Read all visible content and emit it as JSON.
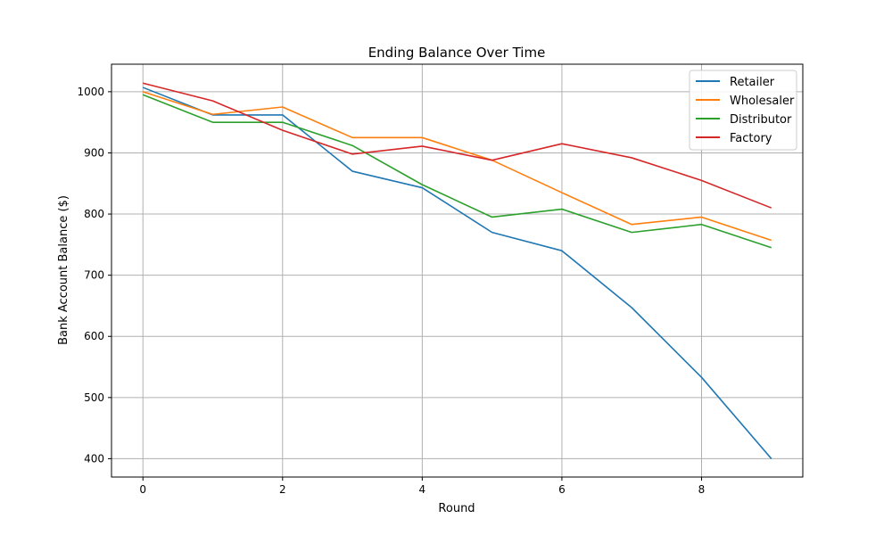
{
  "chart_data": {
    "type": "line",
    "title": "Ending Balance Over Time",
    "xlabel": "Round",
    "ylabel": "Bank Account Balance ($)",
    "x": [
      0,
      1,
      2,
      3,
      4,
      5,
      6,
      7,
      8,
      9
    ],
    "xlim": [
      -0.45,
      9.45
    ],
    "ylim": [
      370,
      1045
    ],
    "xticks": [
      0,
      2,
      4,
      6,
      8
    ],
    "yticks": [
      400,
      500,
      600,
      700,
      800,
      900,
      1000
    ],
    "grid": true,
    "legend_position": "top-right",
    "series": [
      {
        "name": "Retailer",
        "color": "#1f77b4",
        "values": [
          1007,
          962,
          962,
          870,
          843,
          770,
          740,
          647,
          533,
          400
        ]
      },
      {
        "name": "Wholesaler",
        "color": "#ff7f0e",
        "values": [
          1000,
          963,
          975,
          925,
          925,
          888,
          835,
          783,
          795,
          757
        ]
      },
      {
        "name": "Distributor",
        "color": "#2ca02c",
        "values": [
          995,
          950,
          950,
          912,
          848,
          795,
          808,
          770,
          783,
          745
        ]
      },
      {
        "name": "Factory",
        "color": "#d62728",
        "values": [
          1014,
          985,
          937,
          898,
          911,
          888,
          915,
          892,
          855,
          810
        ]
      }
    ]
  }
}
